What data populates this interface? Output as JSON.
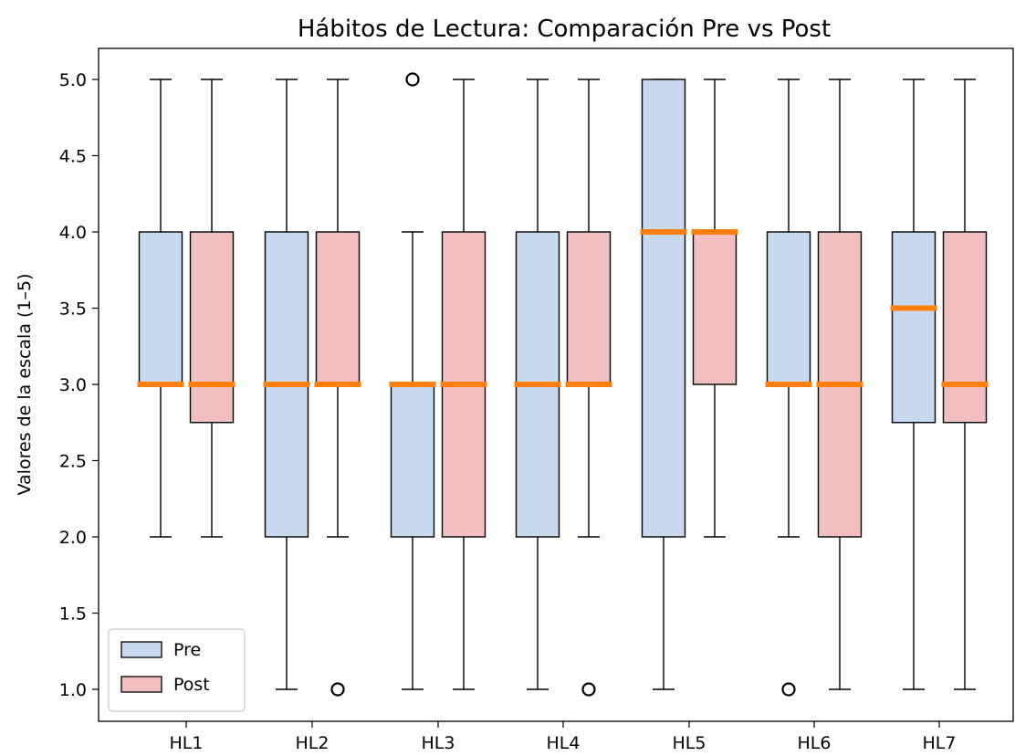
{
  "chart_data": {
    "type": "box",
    "title": "Hábitos de Lectura: Comparación Pre vs Post",
    "xlabel": "",
    "ylabel": "Valores de la escala (1–5)",
    "ylim": [
      0.8,
      5.2
    ],
    "yticks": [
      "1.0",
      "1.5",
      "2.0",
      "2.5",
      "3.0",
      "3.5",
      "4.0",
      "4.5",
      "5.0"
    ],
    "categories": [
      "HL1",
      "HL2",
      "HL3",
      "HL4",
      "HL5",
      "HL6",
      "HL7"
    ],
    "grid": false,
    "legend_position": "lower-left",
    "median_color": "#ff7f0e",
    "series": [
      {
        "name": "Pre",
        "color": "#c6d9ef",
        "boxes": [
          {
            "whisker_low": 2,
            "q1": 3,
            "median": 3,
            "q3": 4,
            "whisker_high": 5,
            "outliers": []
          },
          {
            "whisker_low": 1,
            "q1": 2,
            "median": 3,
            "q3": 4,
            "whisker_high": 5,
            "outliers": []
          },
          {
            "whisker_low": 1,
            "q1": 2,
            "median": 3,
            "q3": 3,
            "whisker_high": 4,
            "outliers": [
              5
            ]
          },
          {
            "whisker_low": 1,
            "q1": 2,
            "median": 3,
            "q3": 4,
            "whisker_high": 5,
            "outliers": []
          },
          {
            "whisker_low": 1,
            "q1": 2,
            "median": 4,
            "q3": 5,
            "whisker_high": 5,
            "outliers": []
          },
          {
            "whisker_low": 2,
            "q1": 3,
            "median": 3,
            "q3": 4,
            "whisker_high": 5,
            "outliers": [
              1
            ]
          },
          {
            "whisker_low": 1,
            "q1": 2.75,
            "median": 3.5,
            "q3": 4,
            "whisker_high": 5,
            "outliers": []
          }
        ]
      },
      {
        "name": "Post",
        "color": "#f2bfc1",
        "boxes": [
          {
            "whisker_low": 2,
            "q1": 2.75,
            "median": 3,
            "q3": 4,
            "whisker_high": 5,
            "outliers": []
          },
          {
            "whisker_low": 2,
            "q1": 3,
            "median": 3,
            "q3": 4,
            "whisker_high": 5,
            "outliers": [
              1
            ]
          },
          {
            "whisker_low": 1,
            "q1": 2,
            "median": 3,
            "q3": 4,
            "whisker_high": 5,
            "outliers": []
          },
          {
            "whisker_low": 2,
            "q1": 3,
            "median": 3,
            "q3": 4,
            "whisker_high": 5,
            "outliers": [
              1
            ]
          },
          {
            "whisker_low": 2,
            "q1": 3,
            "median": 4,
            "q3": 4,
            "whisker_high": 5,
            "outliers": []
          },
          {
            "whisker_low": 1,
            "q1": 2,
            "median": 3,
            "q3": 4,
            "whisker_high": 5,
            "outliers": []
          },
          {
            "whisker_low": 1,
            "q1": 2.75,
            "median": 3,
            "q3": 4,
            "whisker_high": 5,
            "outliers": []
          }
        ]
      }
    ]
  }
}
